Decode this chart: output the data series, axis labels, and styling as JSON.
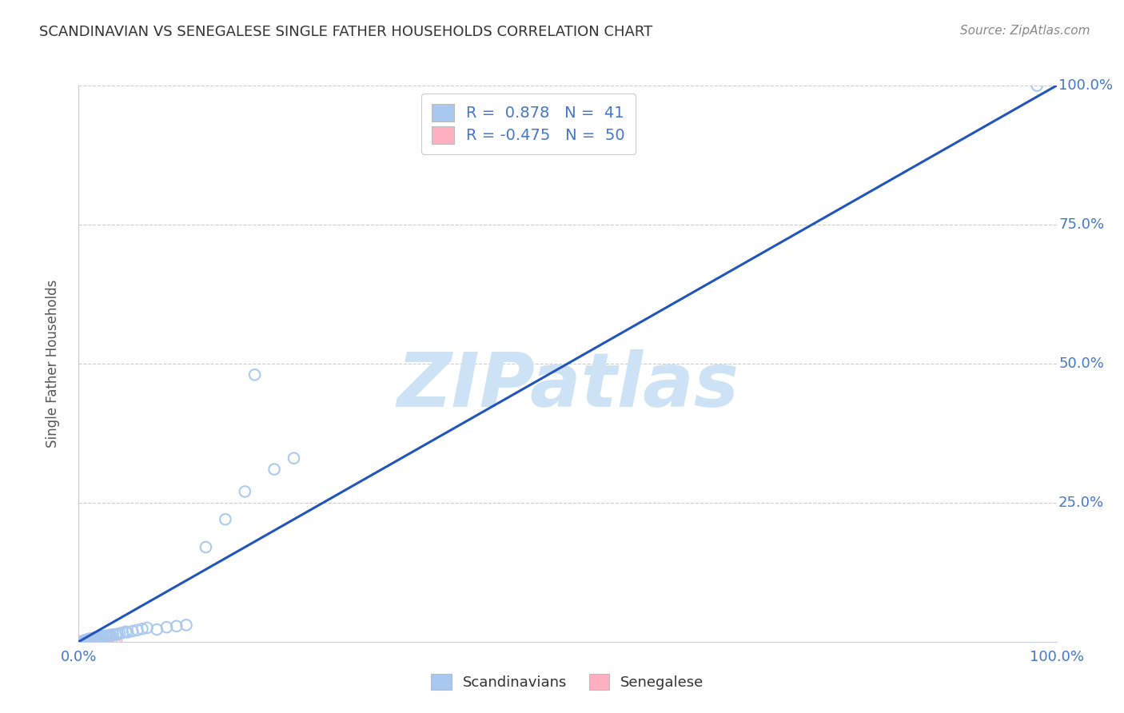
{
  "title": "SCANDINAVIAN VS SENEGALESE SINGLE FATHER HOUSEHOLDS CORRELATION CHART",
  "source": "Source: ZipAtlas.com",
  "ylabel": "Single Father Households",
  "xlim": [
    0,
    1.0
  ],
  "ylim": [
    0,
    1.0
  ],
  "background_color": "#ffffff",
  "grid_color": "#cccccc",
  "scandinavian_color": "#a8c8f0",
  "senegalese_color": "#ffb0c0",
  "trendline_color": "#2255bb",
  "watermark_text": "ZIPatlas",
  "watermark_color": "#cde3f5",
  "legend_R1": "0.878",
  "legend_N1": "41",
  "legend_R2": "-0.475",
  "legend_N2": "50",
  "tick_label_color": "#4477cc",
  "scandinavian_points": [
    [
      0.005,
      0.002
    ],
    [
      0.007,
      0.003
    ],
    [
      0.009,
      0.004
    ],
    [
      0.01,
      0.005
    ],
    [
      0.012,
      0.004
    ],
    [
      0.013,
      0.006
    ],
    [
      0.015,
      0.005
    ],
    [
      0.016,
      0.007
    ],
    [
      0.018,
      0.006
    ],
    [
      0.019,
      0.008
    ],
    [
      0.02,
      0.007
    ],
    [
      0.022,
      0.009
    ],
    [
      0.023,
      0.008
    ],
    [
      0.025,
      0.01
    ],
    [
      0.027,
      0.009
    ],
    [
      0.028,
      0.011
    ],
    [
      0.03,
      0.01
    ],
    [
      0.032,
      0.012
    ],
    [
      0.033,
      0.011
    ],
    [
      0.035,
      0.013
    ],
    [
      0.038,
      0.012
    ],
    [
      0.04,
      0.014
    ],
    [
      0.042,
      0.015
    ],
    [
      0.045,
      0.016
    ],
    [
      0.048,
      0.018
    ],
    [
      0.05,
      0.017
    ],
    [
      0.055,
      0.019
    ],
    [
      0.06,
      0.021
    ],
    [
      0.065,
      0.023
    ],
    [
      0.07,
      0.025
    ],
    [
      0.08,
      0.022
    ],
    [
      0.09,
      0.026
    ],
    [
      0.1,
      0.028
    ],
    [
      0.11,
      0.03
    ],
    [
      0.13,
      0.17
    ],
    [
      0.15,
      0.22
    ],
    [
      0.17,
      0.27
    ],
    [
      0.18,
      0.48
    ],
    [
      0.2,
      0.31
    ],
    [
      0.22,
      0.33
    ],
    [
      0.98,
      1.0
    ]
  ],
  "senegalese_points": [
    [
      0.002,
      0.001
    ],
    [
      0.003,
      0.001
    ],
    [
      0.004,
      0.001
    ],
    [
      0.005,
      0.001
    ],
    [
      0.006,
      0.001
    ],
    [
      0.007,
      0.001
    ],
    [
      0.008,
      0.001
    ],
    [
      0.009,
      0.001
    ],
    [
      0.01,
      0.001
    ],
    [
      0.011,
      0.001
    ],
    [
      0.012,
      0.001
    ],
    [
      0.013,
      0.001
    ],
    [
      0.002,
      0.002
    ],
    [
      0.003,
      0.002
    ],
    [
      0.004,
      0.002
    ],
    [
      0.005,
      0.002
    ],
    [
      0.006,
      0.002
    ],
    [
      0.007,
      0.002
    ],
    [
      0.008,
      0.002
    ],
    [
      0.009,
      0.002
    ],
    [
      0.01,
      0.002
    ],
    [
      0.011,
      0.002
    ],
    [
      0.012,
      0.002
    ],
    [
      0.013,
      0.002
    ],
    [
      0.002,
      0.003
    ],
    [
      0.003,
      0.003
    ],
    [
      0.004,
      0.003
    ],
    [
      0.005,
      0.003
    ],
    [
      0.006,
      0.003
    ],
    [
      0.007,
      0.003
    ],
    [
      0.008,
      0.003
    ],
    [
      0.009,
      0.003
    ],
    [
      0.01,
      0.003
    ],
    [
      0.011,
      0.003
    ],
    [
      0.012,
      0.003
    ],
    [
      0.013,
      0.003
    ],
    [
      0.014,
      0.001
    ],
    [
      0.015,
      0.001
    ],
    [
      0.016,
      0.001
    ],
    [
      0.017,
      0.001
    ],
    [
      0.018,
      0.001
    ],
    [
      0.019,
      0.001
    ],
    [
      0.02,
      0.001
    ],
    [
      0.022,
      0.001
    ],
    [
      0.025,
      0.001
    ],
    [
      0.028,
      0.001
    ],
    [
      0.03,
      0.001
    ],
    [
      0.035,
      0.001
    ],
    [
      0.038,
      0.001
    ],
    [
      0.04,
      0.001
    ]
  ],
  "trendline_x": [
    0.0,
    1.0
  ],
  "trendline_y": [
    0.0,
    1.0
  ]
}
